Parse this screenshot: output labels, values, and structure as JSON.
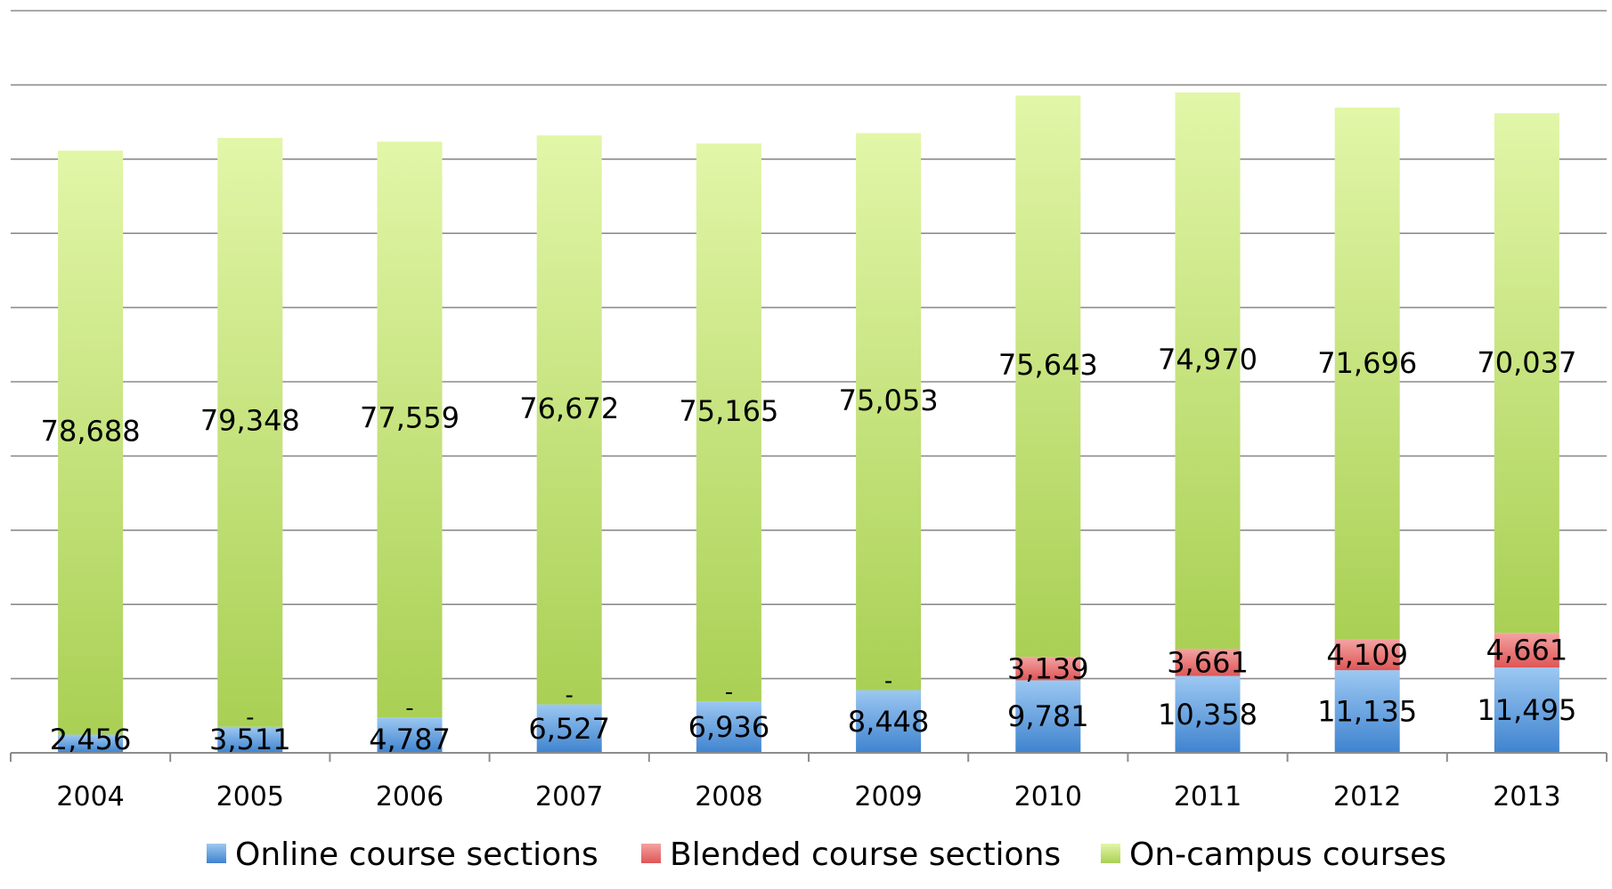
{
  "chart_data": {
    "type": "bar",
    "stacked": true,
    "categories": [
      "2004",
      "2005",
      "2006",
      "2007",
      "2008",
      "2009",
      "2010",
      "2011",
      "2012",
      "2013"
    ],
    "series": [
      {
        "name": "Online course sections",
        "color": "#4a8fd4",
        "values": [
          2456,
          3511,
          4787,
          6527,
          6936,
          8448,
          9781,
          10358,
          11135,
          11495
        ],
        "labels": [
          "2,456",
          "3,511",
          "4,787",
          "6,527",
          "6,936",
          "8,448",
          "9,781",
          "10,358",
          "11,135",
          "11,495"
        ]
      },
      {
        "name": "Blended course sections",
        "color": "#e46a6a",
        "values": [
          0,
          0,
          0,
          0,
          0,
          0,
          3139,
          3661,
          4109,
          4661
        ],
        "labels": [
          "",
          "-",
          "-",
          "-",
          "-",
          "-",
          "3,139",
          "3,661",
          "4,109",
          "4,661"
        ]
      },
      {
        "name": "On-campus courses",
        "color": "#b5d96a",
        "values": [
          78688,
          79348,
          77559,
          76672,
          75165,
          75053,
          75643,
          74970,
          71696,
          70037
        ],
        "labels": [
          "78,688",
          "79,348",
          "77,559",
          "76,672",
          "75,165",
          "75,053",
          "75,643",
          "74,970",
          "71,696",
          "70,037"
        ]
      }
    ],
    "ylim": [
      0,
      100000
    ],
    "grid": true,
    "legend_position": "bottom",
    "title": "",
    "xlabel": "",
    "ylabel": ""
  }
}
